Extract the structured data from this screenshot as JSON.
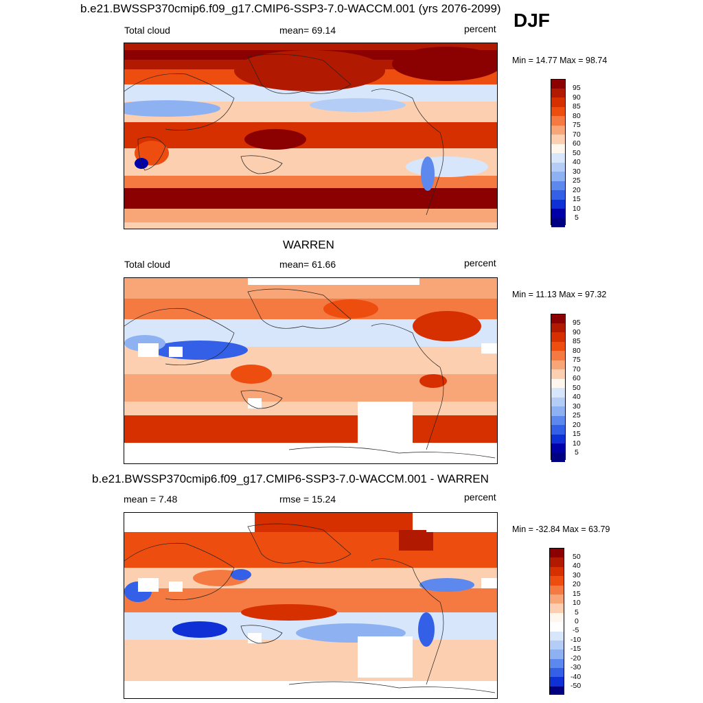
{
  "figure": {
    "season": "DJF"
  },
  "panels": [
    {
      "title": "b.e21.BWSSP370cmip6.f09_g17.CMIP6-SSP3-7.0-WACCM.001 (yrs 2076-2099)",
      "left_label": "Total cloud",
      "center_label": "mean=  69.14",
      "right_label": "percent",
      "minmax": "Min =  14.77 Max =  98.74",
      "colorbar_levels": [
        "95",
        "90",
        "85",
        "80",
        "75",
        "70",
        "60",
        "50",
        "40",
        "30",
        "25",
        "20",
        "15",
        "10",
        "5"
      ]
    },
    {
      "title": "WARREN",
      "left_label": "Total cloud",
      "center_label": "mean=  61.66",
      "right_label": "percent",
      "minmax": "Min =  11.13 Max =  97.32",
      "colorbar_levels": [
        "95",
        "90",
        "85",
        "80",
        "75",
        "70",
        "60",
        "50",
        "40",
        "30",
        "25",
        "20",
        "15",
        "10",
        "5"
      ]
    },
    {
      "title": "b.e21.BWSSP370cmip6.f09_g17.CMIP6-SSP3-7.0-WACCM.001 - WARREN",
      "left_label": "mean =   7.48",
      "center_label": "rmse =  15.24",
      "right_label": "percent",
      "minmax": "Min = -32.84 Max =  63.79",
      "colorbar_levels": [
        "50",
        "40",
        "30",
        "20",
        "15",
        "10",
        "5",
        "0",
        "-5",
        "-10",
        "-15",
        "-20",
        "-30",
        "-40",
        "-50"
      ]
    }
  ],
  "colors": {
    "abs_scale": [
      "#8b0000",
      "#b11a00",
      "#d62f00",
      "#ee4d10",
      "#f47a42",
      "#f8a577",
      "#fbcfb0",
      "#fff6ee",
      "#d7e6fb",
      "#b4cdf6",
      "#8eb1f2",
      "#5d89ee",
      "#3360e6",
      "#0f30d4",
      "#0000a8",
      "#000080"
    ],
    "diff_scale": [
      "#8b0000",
      "#b11a00",
      "#d62f00",
      "#ee4d10",
      "#f47a42",
      "#f8a577",
      "#fbcfb0",
      "#fff6ee",
      "#ffffff",
      "#d7e6fb",
      "#b4cdf6",
      "#8eb1f2",
      "#5d89ee",
      "#3360e6",
      "#0f30d4",
      "#000080"
    ]
  }
}
